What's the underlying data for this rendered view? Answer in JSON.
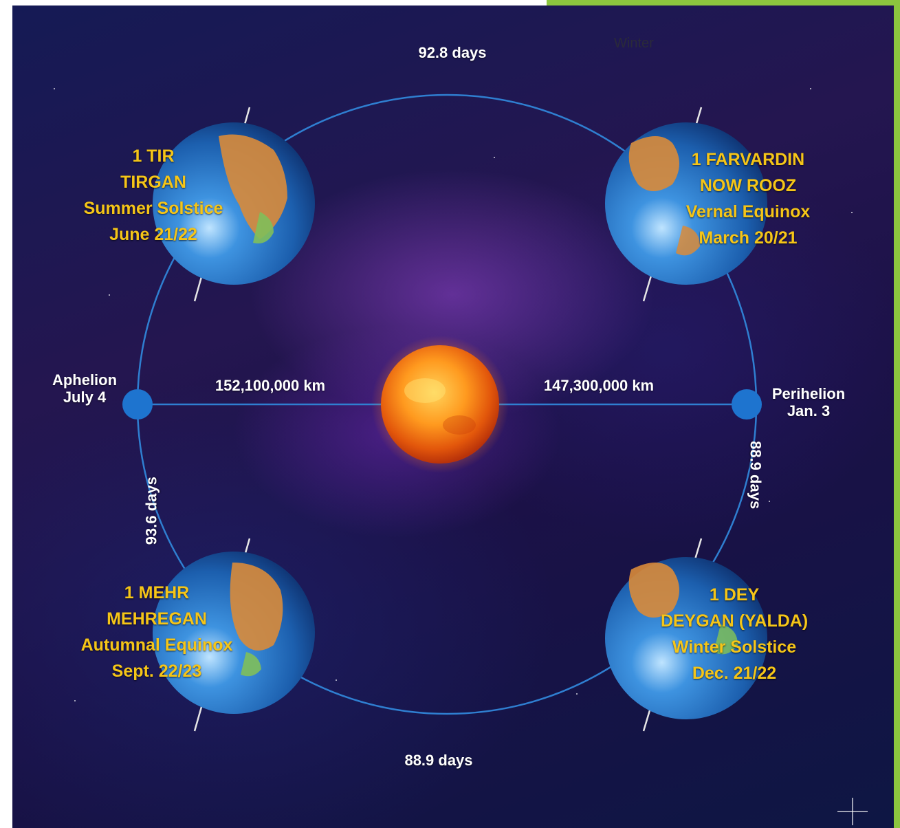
{
  "colors": {
    "accent": "#8cc63e",
    "orbit": "#2f7fd1",
    "label_gold": "#f5c518",
    "label_white": "#ffffff"
  },
  "corner_text": "Winter",
  "durations": {
    "top": "92.8 days",
    "bottom": "88.9 days",
    "left": "93.6 days",
    "right": "88.9 days"
  },
  "distances": {
    "aphelion": "152,100,000 km",
    "perihelion": "147,300,000 km"
  },
  "aphelion": {
    "label": "Aphelion",
    "date": "July 4"
  },
  "perihelion": {
    "label": "Perihelion",
    "date": "Jan. 3"
  },
  "seasons": {
    "summer": {
      "line1": "1 TIR",
      "line2": "TIRGAN",
      "line3": "Summer Solstice",
      "line4": "June 21/22"
    },
    "spring": {
      "line1": "1 FARVARDIN",
      "line2": "NOW ROOZ",
      "line3": "Vernal Equinox",
      "line4": "March 20/21"
    },
    "autumn": {
      "line1": "1 MEHR",
      "line2": "MEHREGAN",
      "line3": "Autumnal Equinox",
      "line4": "Sept. 22/23"
    },
    "winter": {
      "line1": "1 DEY",
      "line2": "DEYGAN (YALDA)",
      "line3": "Winter Solstice",
      "line4": "Dec. 21/22"
    }
  }
}
